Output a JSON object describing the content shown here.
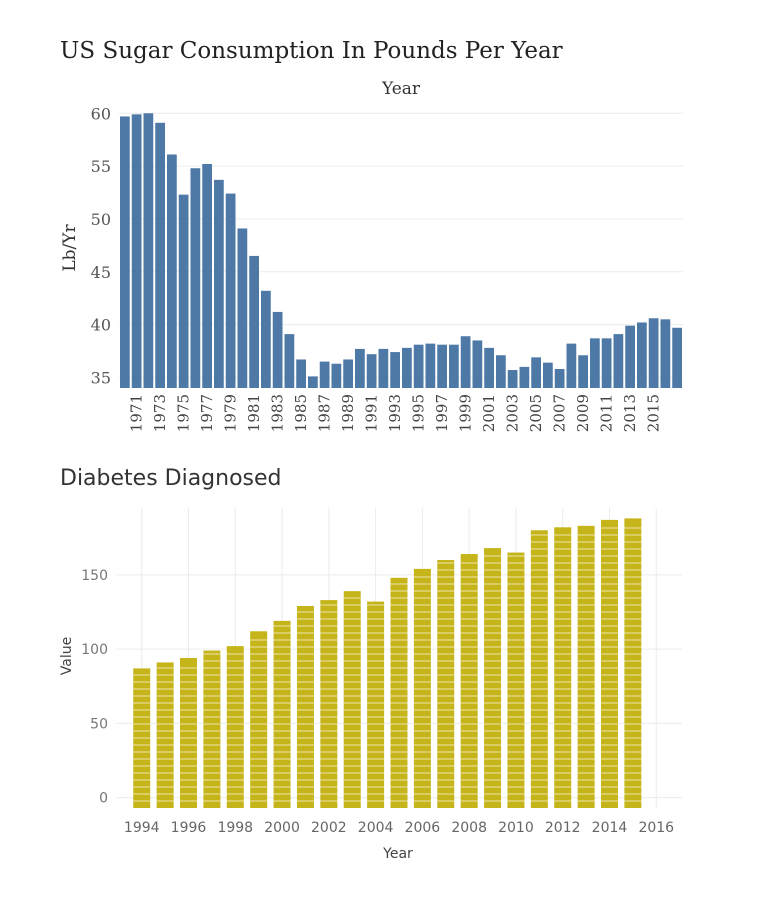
{
  "chart_data": [
    {
      "type": "bar",
      "title": "US Sugar Consumption In Pounds Per Year",
      "xlabel": "Year",
      "ylabel": "Lb/Yr",
      "ylim": [
        34,
        60.5
      ],
      "yticks": [
        35,
        40,
        45,
        50,
        55,
        60
      ],
      "color": "#4e79a7",
      "categories": [
        1970,
        1971,
        1972,
        1973,
        1974,
        1975,
        1976,
        1977,
        1978,
        1979,
        1980,
        1981,
        1982,
        1983,
        1984,
        1985,
        1986,
        1987,
        1988,
        1989,
        1990,
        1991,
        1992,
        1993,
        1994,
        1995,
        1996,
        1997,
        1998,
        1999,
        2000,
        2001,
        2002,
        2003,
        2004,
        2005,
        2006,
        2007,
        2008,
        2009,
        2010,
        2011,
        2012,
        2013,
        2014,
        2015,
        2016,
        2017
      ],
      "x_tick_labels": [
        "1971",
        "1973",
        "1975",
        "1977",
        "1979",
        "1981",
        "1983",
        "1985",
        "1987",
        "1989",
        "1991",
        "1993",
        "1995",
        "1997",
        "1999",
        "2001",
        "2003",
        "2005",
        "2007",
        "2009",
        "2011",
        "2013",
        "2015"
      ],
      "values": [
        59.7,
        59.9,
        60.0,
        59.1,
        56.1,
        52.3,
        54.8,
        55.2,
        53.7,
        52.4,
        49.1,
        46.5,
        43.2,
        41.2,
        39.1,
        36.7,
        35.1,
        36.5,
        36.3,
        36.7,
        37.7,
        37.2,
        37.7,
        37.4,
        37.8,
        38.1,
        38.2,
        38.1,
        38.1,
        38.9,
        38.5,
        37.8,
        37.1,
        35.7,
        36.0,
        36.9,
        36.4,
        35.8,
        38.2,
        37.1,
        38.7,
        38.7,
        39.1,
        39.9,
        40.2,
        40.6,
        40.5,
        39.7
      ]
    },
    {
      "type": "bar",
      "title": "Diabetes Diagnosed",
      "xlabel": "Year",
      "ylabel": "Value",
      "ylim": [
        -7,
        195
      ],
      "yticks": [
        0,
        50,
        100,
        150
      ],
      "xlim": [
        1992.9,
        2017.1
      ],
      "x_tick_labels": [
        "1994",
        "1996",
        "1998",
        "2000",
        "2002",
        "2004",
        "2006",
        "2008",
        "2010",
        "2012",
        "2014",
        "2016"
      ],
      "color": "#c5b51a",
      "categories": [
        1994,
        1995,
        1996,
        1997,
        1998,
        1999,
        2000,
        2001,
        2002,
        2003,
        2004,
        2005,
        2006,
        2007,
        2008,
        2009,
        2010,
        2011,
        2012,
        2013,
        2014,
        2015
      ],
      "values": [
        87,
        91,
        94,
        99,
        102,
        112,
        119,
        129,
        133,
        139,
        132,
        148,
        154,
        160,
        164,
        168,
        165,
        180,
        182,
        183,
        187,
        188
      ]
    }
  ]
}
